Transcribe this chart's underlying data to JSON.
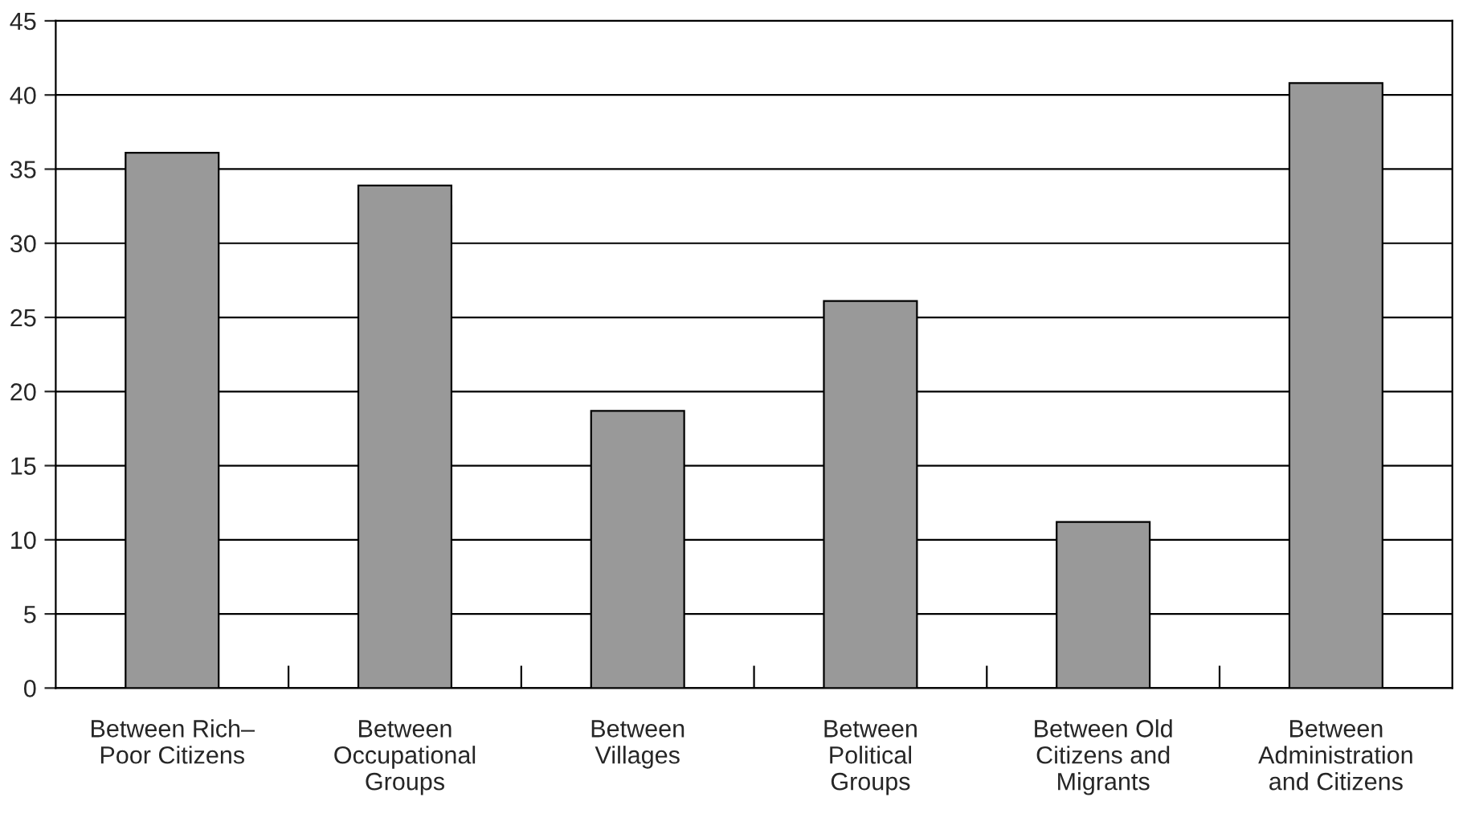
{
  "chart_data": {
    "type": "bar",
    "categories": [
      "Between Rich–\nPoor Citizens",
      "Between\nOccupational\nGroups",
      "Between\nVillages",
      "Between\nPolitical\nGroups",
      "Between Old\nCitizens and\nMigrants",
      "Between\nAdministration\nand Citizens"
    ],
    "values": [
      36.1,
      33.9,
      18.7,
      26.1,
      11.2,
      40.8
    ],
    "color": "#999999",
    "ylim": [
      0,
      45
    ],
    "yticks": [
      0,
      5,
      10,
      15,
      20,
      25,
      30,
      35,
      40,
      45
    ],
    "grid": "y",
    "legend": false
  }
}
